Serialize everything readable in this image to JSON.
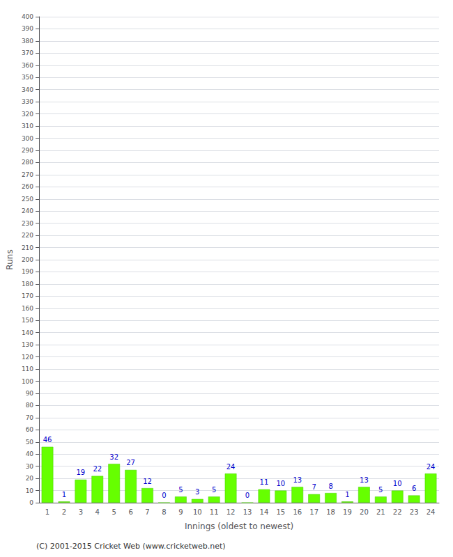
{
  "chart_data": {
    "type": "bar",
    "xlabel": "Innings (oldest to newest)",
    "ylabel": "Runs",
    "categories": [
      "1",
      "2",
      "3",
      "4",
      "5",
      "6",
      "7",
      "8",
      "9",
      "10",
      "11",
      "12",
      "13",
      "14",
      "15",
      "16",
      "17",
      "18",
      "19",
      "20",
      "21",
      "22",
      "23",
      "24"
    ],
    "values": [
      46,
      1,
      19,
      22,
      32,
      27,
      12,
      0,
      5,
      3,
      5,
      24,
      0,
      11,
      10,
      13,
      7,
      8,
      1,
      13,
      5,
      10,
      6,
      24
    ],
    "color": "#66ff00",
    "ylim": [
      0,
      400
    ],
    "yticks": [
      0,
      10,
      20,
      30,
      40,
      50,
      60,
      70,
      80,
      90,
      100,
      110,
      120,
      130,
      140,
      150,
      160,
      170,
      180,
      190,
      200,
      210,
      220,
      230,
      240,
      250,
      260,
      270,
      280,
      290,
      300,
      310,
      320,
      330,
      340,
      350,
      360,
      370,
      380,
      390,
      400
    ],
    "grid": true,
    "data_labels": true,
    "footer": "(C) 2001-2015 Cricket Web (www.cricketweb.net)"
  }
}
